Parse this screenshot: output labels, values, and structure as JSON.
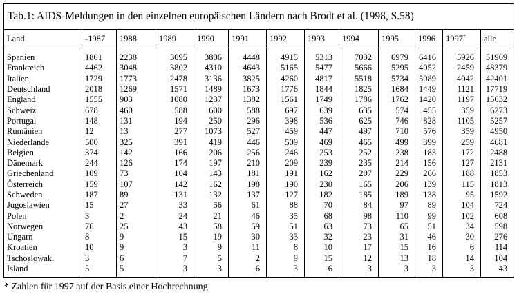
{
  "title": "Tab.1: AIDS-Meldungen in den einzelnen europäischen Ländern nach  Brodt et al. (1998, S.58)",
  "table": {
    "columns": [
      {
        "text": "Land"
      },
      {
        "text": "-1987"
      },
      {
        "text": "1988"
      },
      {
        "text": "1989"
      },
      {
        "text": "1990"
      },
      {
        "text": "1991"
      },
      {
        "text": "1992"
      },
      {
        "text": "1993"
      },
      {
        "text": "1994"
      },
      {
        "text": "1995"
      },
      {
        "text": "1996"
      },
      {
        "text": "1997",
        "sup": "*"
      },
      {
        "text": "alle"
      }
    ],
    "rows": [
      [
        "Spanien",
        1801,
        2238,
        3095,
        3806,
        4448,
        4915,
        5313,
        7032,
        6979,
        6416,
        5926,
        51969
      ],
      [
        "Frankreich",
        4462,
        3048,
        3802,
        4310,
        4643,
        5165,
        5477,
        5666,
        5295,
        4052,
        2459,
        48379
      ],
      [
        "Italien",
        1729,
        1773,
        2478,
        3136,
        3825,
        4260,
        4817,
        5518,
        5734,
        5089,
        4042,
        42401
      ],
      [
        "Deutschland",
        2018,
        1269,
        1571,
        1489,
        1673,
        1776,
        1844,
        1825,
        1684,
        1449,
        1121,
        17719
      ],
      [
        "England",
        1555,
        903,
        1080,
        1237,
        1382,
        1561,
        1749,
        1786,
        1762,
        1420,
        1197,
        15632
      ],
      [
        "Schweiz",
        678,
        460,
        588,
        600,
        588,
        697,
        639,
        635,
        574,
        455,
        359,
        6273
      ],
      [
        "Portugal",
        148,
        131,
        194,
        250,
        296,
        398,
        536,
        625,
        746,
        828,
        1105,
        5257
      ],
      [
        "Rumänien",
        12,
        13,
        277,
        1073,
        527,
        459,
        447,
        497,
        710,
        576,
        359,
        4950
      ],
      [
        "Niederlande",
        500,
        325,
        391,
        419,
        446,
        509,
        469,
        465,
        499,
        399,
        259,
        4681
      ],
      [
        "Belgien",
        374,
        142,
        166,
        206,
        256,
        246,
        253,
        252,
        238,
        183,
        172,
        2488
      ],
      [
        "Dänemark",
        244,
        126,
        174,
        197,
        210,
        209,
        239,
        235,
        214,
        156,
        127,
        2131
      ],
      [
        "Griechenland",
        109,
        73,
        104,
        143,
        181,
        191,
        162,
        207,
        229,
        266,
        188,
        1853
      ],
      [
        "Österreich",
        159,
        107,
        142,
        162,
        198,
        190,
        230,
        165,
        206,
        139,
        115,
        1813
      ],
      [
        "Schweden",
        187,
        89,
        131,
        132,
        137,
        127,
        182,
        185,
        189,
        138,
        95,
        1592
      ],
      [
        "Jugoslawien",
        15,
        27,
        33,
        56,
        61,
        88,
        70,
        84,
        97,
        89,
        104,
        724
      ],
      [
        "Polen",
        3,
        2,
        24,
        21,
        46,
        35,
        68,
        98,
        110,
        99,
        102,
        608
      ],
      [
        "Norwegen",
        76,
        25,
        43,
        58,
        59,
        51,
        63,
        73,
        65,
        51,
        34,
        598
      ],
      [
        "Ungarn",
        8,
        9,
        15,
        19,
        30,
        33,
        32,
        23,
        31,
        46,
        30,
        276
      ],
      [
        "Kroatien",
        10,
        9,
        3,
        9,
        11,
        8,
        10,
        17,
        15,
        16,
        6,
        114
      ],
      [
        "Tschoslowak.",
        3,
        6,
        7,
        5,
        2,
        9,
        15,
        12,
        13,
        18,
        14,
        104
      ],
      [
        "Island",
        5,
        5,
        3,
        3,
        6,
        3,
        6,
        3,
        3,
        3,
        3,
        43
      ]
    ]
  },
  "footnote": "* Zahlen für 1997 auf der Basis einer Hochrechnung"
}
